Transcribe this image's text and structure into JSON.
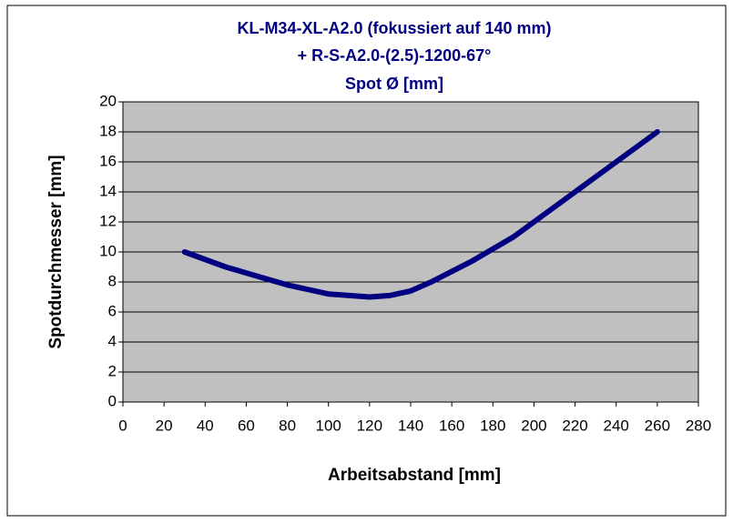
{
  "chart_data": {
    "type": "line",
    "title": [
      "KL-M34-XL-A2.0 (fokussiert auf 140 mm)",
      "+ R-S-A2.0-(2.5)-1200-67°",
      "Spot Ø [mm]"
    ],
    "xlabel": "Arbeitsabstand [mm]",
    "ylabel": "Spotdurchmesser [mm]",
    "x": [
      30,
      40,
      50,
      60,
      70,
      80,
      90,
      100,
      110,
      120,
      130,
      140,
      150,
      160,
      170,
      180,
      190,
      200,
      210,
      220,
      230,
      240,
      250,
      260
    ],
    "series": [
      {
        "color": "#000080",
        "values": [
          10,
          9.5,
          9.0,
          8.6,
          8.2,
          7.8,
          7.5,
          7.2,
          7.1,
          7.0,
          7.1,
          7.4,
          8.0,
          8.7,
          9.4,
          10.2,
          11.0,
          12.0,
          13.0,
          14.0,
          15.0,
          16.0,
          17.0,
          18.0
        ]
      }
    ],
    "xlim": [
      0,
      280
    ],
    "xticks": [
      0,
      20,
      40,
      60,
      80,
      100,
      120,
      140,
      160,
      180,
      200,
      220,
      240,
      260,
      280
    ],
    "ylim": [
      0,
      20
    ],
    "yticks": [
      0,
      2,
      4,
      6,
      8,
      10,
      12,
      14,
      16,
      18,
      20
    ],
    "grid": true,
    "plot_background": "#c0c0c0"
  }
}
